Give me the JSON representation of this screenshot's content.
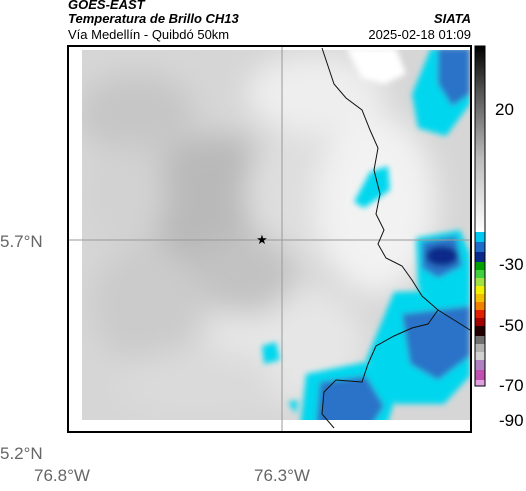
{
  "header": {
    "source": "GOES-EAST",
    "product": "Temperatura de Brillo CH13",
    "location": "Vía Medellín - Quibdó 50km",
    "organization": "SIATA",
    "timestamp": "2025-02-18 01:09"
  },
  "axes": {
    "lat_ticks": [
      "5.7°N",
      "5.2°N"
    ],
    "lon_ticks": [
      "76.8°W",
      "76.3°W"
    ]
  },
  "colorbar": {
    "ticks": [
      "20",
      "-30",
      "-50",
      "-70",
      "-90"
    ]
  },
  "colors": {
    "cloud_cyan": "#00d7ee",
    "cloud_blue": "#2a73c8",
    "cloud_deep": "#0a2a8a",
    "ground_gray": "#cfcfcf",
    "border_line": "#111111"
  },
  "markers": {
    "center_icon": "star-icon"
  }
}
